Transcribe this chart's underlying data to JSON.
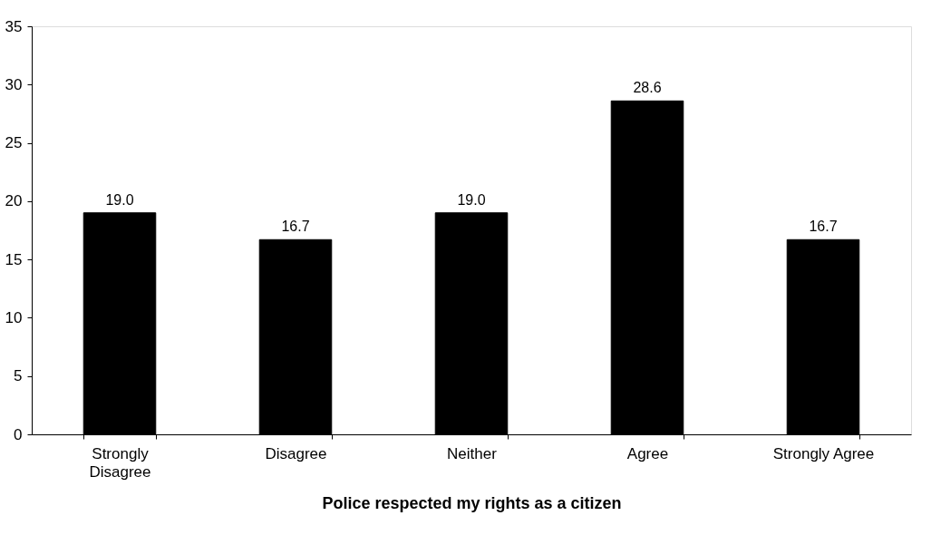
{
  "chart_data": {
    "type": "bar",
    "xlabel": "Police respected my rights as a citizen",
    "categories": [
      "Strongly Disagree",
      "Disagree",
      "Neither",
      "Agree",
      "Strongly Agree"
    ],
    "values": [
      19.0,
      16.7,
      19.0,
      28.6,
      16.7
    ],
    "color": "#000000",
    "ylim": [
      0,
      35
    ],
    "yticks": [
      0,
      5,
      10,
      15,
      20,
      25,
      30,
      35
    ],
    "grid": false,
    "value_labels": [
      "19.0",
      "16.7",
      "19.0",
      "28.6",
      "16.7"
    ]
  }
}
